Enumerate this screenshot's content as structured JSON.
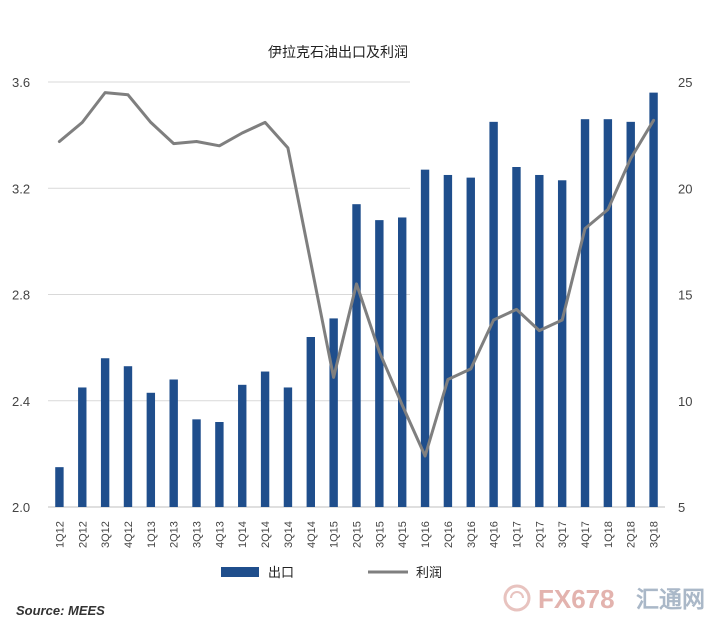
{
  "chart_data": {
    "type": "bar+line",
    "title": "伊拉克石油出口及利润",
    "categories": [
      "1Q12",
      "2Q12",
      "3Q12",
      "4Q12",
      "1Q13",
      "2Q13",
      "3Q13",
      "4Q13",
      "1Q14",
      "2Q14",
      "3Q14",
      "4Q14",
      "1Q15",
      "2Q15",
      "3Q15",
      "4Q15",
      "1Q16",
      "2Q16",
      "3Q16",
      "4Q16",
      "1Q17",
      "2Q17",
      "3Q17",
      "4Q17",
      "1Q18",
      "2Q18",
      "3Q18"
    ],
    "series": [
      {
        "name": "出口",
        "type": "bar",
        "axis": "left",
        "color": "#1f4e8c",
        "values": [
          2.15,
          2.45,
          2.56,
          2.53,
          2.43,
          2.48,
          2.33,
          2.32,
          2.46,
          2.51,
          2.45,
          2.64,
          2.71,
          3.14,
          3.08,
          3.09,
          3.27,
          3.25,
          3.24,
          3.45,
          3.28,
          3.25,
          3.23,
          3.46,
          3.46,
          3.45,
          3.56
        ]
      },
      {
        "name": "利润",
        "type": "line",
        "axis": "right",
        "color": "#7f7f7f",
        "values": [
          22.2,
          23.1,
          24.5,
          24.4,
          23.1,
          22.1,
          22.2,
          22.0,
          22.6,
          23.1,
          21.9,
          16.5,
          11.1,
          15.5,
          12.3,
          9.8,
          7.4,
          11.0,
          11.5,
          13.8,
          14.3,
          13.3,
          13.8,
          18.1,
          19.0,
          21.4,
          23.2
        ]
      }
    ],
    "y_left": {
      "min": 2.0,
      "max": 3.6,
      "ticks": [
        "2.0",
        "2.4",
        "2.8",
        "3.2",
        "3.6"
      ]
    },
    "y_right": {
      "min": 5,
      "max": 25,
      "ticks": [
        "5",
        "10",
        "15",
        "20",
        "25"
      ]
    },
    "grid": true,
    "legend": {
      "position": "bottom",
      "entries": [
        "出口",
        "利润"
      ]
    }
  },
  "source": "Source: MEES",
  "watermark": {
    "text": "FX678",
    "cn": "汇通网"
  }
}
